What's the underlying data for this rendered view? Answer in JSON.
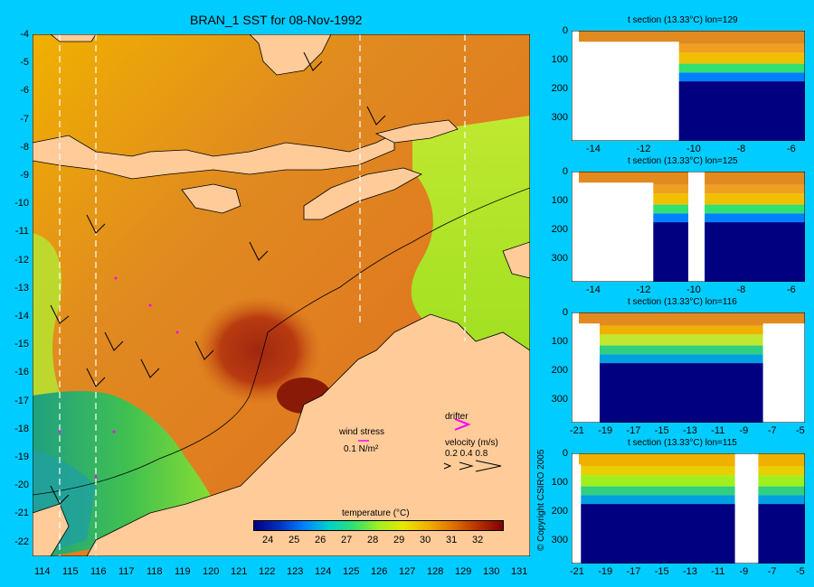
{
  "main_map": {
    "title": "BRAN_1 SST for 08-Nov-1992",
    "lat_ticks": [
      "-4",
      "-5",
      "-6",
      "-7",
      "-8",
      "-9",
      "-10",
      "-11",
      "-12",
      "-13",
      "-14",
      "-15",
      "-16",
      "-17",
      "-18",
      "-19",
      "-20",
      "-21",
      "-22"
    ],
    "lon_ticks": [
      "114",
      "115",
      "116",
      "117",
      "118",
      "119",
      "120",
      "121",
      "122",
      "123",
      "124",
      "125",
      "126",
      "127",
      "128",
      "129",
      "130",
      "131"
    ],
    "section_longitudes": [
      114.5,
      115.8,
      125.5,
      129.2
    ],
    "wind_stress_label": "wind stress",
    "wind_stress_scale": "0.1 N/m²",
    "drifter_label": "drifter",
    "velocity_label": "velocity (m/s)",
    "velocity_scale": "0.2 0.4 0.8",
    "colorbar": {
      "label": "temperature (°C)",
      "ticks": [
        "24",
        "25",
        "26",
        "27",
        "28",
        "29",
        "30",
        "31",
        "32"
      ],
      "colors": [
        "#000080",
        "#0030C0",
        "#0080FF",
        "#00D0D0",
        "#30E070",
        "#A0F020",
        "#E8E800",
        "#F0B000",
        "#E07000",
        "#B83000",
        "#800000"
      ]
    },
    "colors": {
      "land": "#FFCC99",
      "warm_sea": "#E08A20",
      "hot_sea": "#A02810",
      "cool_sea": "#B8E830",
      "cold_sea": "#30B060",
      "drifter": "#FF00FF"
    }
  },
  "sections": [
    {
      "title": "t section (13.33°C) lon=129",
      "x_ticks": [
        "-14",
        "-12",
        "-10",
        "-8",
        "-6"
      ],
      "y_ticks": [
        "0",
        "100",
        "200",
        "300"
      ]
    },
    {
      "title": "t section (13.33°C) lon=125",
      "x_ticks": [
        "-14",
        "-12",
        "-10",
        "-8",
        "-6"
      ],
      "y_ticks": [
        "0",
        "100",
        "200",
        "300"
      ]
    },
    {
      "title": "t section (13.33°C) lon=116",
      "x_ticks": [
        "-21",
        "-19",
        "-17",
        "-15",
        "-13",
        "-11",
        "-9",
        "-7",
        "-5"
      ],
      "y_ticks": [
        "0",
        "100",
        "200",
        "300"
      ]
    },
    {
      "title": "t section (13.33°C) lon=115",
      "x_ticks": [
        "-21",
        "-19",
        "-17",
        "-15",
        "-13",
        "-11",
        "-9",
        "-7",
        "-5"
      ],
      "y_ticks": [
        "0",
        "100",
        "200",
        "300"
      ]
    }
  ],
  "copyright": "© Copyright CSIRO 2005"
}
